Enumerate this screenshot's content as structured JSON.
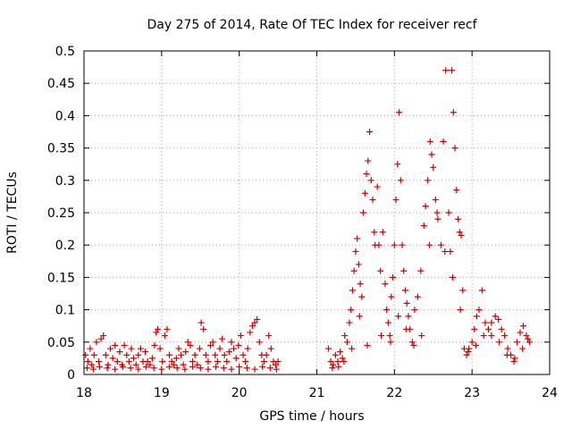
{
  "chart_data": {
    "type": "scatter",
    "title": "Day 275 of 2014, Rate Of TEC Index for receiver recf",
    "xlabel": "GPS time / hours",
    "ylabel": "ROTI / TECUs",
    "xlim": [
      18,
      24
    ],
    "ylim": [
      0,
      0.5
    ],
    "xticks": [
      "18",
      "19",
      "20",
      "21",
      "22",
      "23",
      "24"
    ],
    "yticks": [
      "0",
      "0.05",
      "0.1",
      "0.15",
      "0.2",
      "0.25",
      "0.3",
      "0.35",
      "0.4",
      "0.45",
      "0.5"
    ],
    "grid": true,
    "marker": "+",
    "color": "#cc0000",
    "series": [
      {
        "name": "ROTI",
        "points": [
          [
            18.02,
            0.03
          ],
          [
            18.05,
            0.02
          ],
          [
            18.08,
            0.04
          ],
          [
            18.1,
            0.015
          ],
          [
            18.13,
            0.03
          ],
          [
            18.16,
            0.05
          ],
          [
            18.19,
            0.02
          ],
          [
            18.22,
            0.055
          ],
          [
            18.25,
            0.06
          ],
          [
            18.28,
            0.03
          ],
          [
            18.31,
            0.015
          ],
          [
            18.34,
            0.04
          ],
          [
            18.37,
            0.025
          ],
          [
            18.4,
            0.045
          ],
          [
            18.43,
            0.02
          ],
          [
            18.46,
            0.035
          ],
          [
            18.49,
            0.015
          ],
          [
            18.52,
            0.045
          ],
          [
            18.55,
            0.03
          ],
          [
            18.58,
            0.02
          ],
          [
            18.61,
            0.04
          ],
          [
            18.64,
            0.025
          ],
          [
            18.67,
            0.015
          ],
          [
            18.7,
            0.03
          ],
          [
            18.73,
            0.04
          ],
          [
            18.76,
            0.02
          ],
          [
            18.79,
            0.035
          ],
          [
            18.82,
            0.02
          ],
          [
            18.85,
            0.015
          ],
          [
            18.88,
            0.025
          ],
          [
            18.91,
            0.045
          ],
          [
            18.93,
            0.065
          ],
          [
            18.95,
            0.07
          ],
          [
            18.98,
            0.04
          ],
          [
            19.01,
            0.02
          ],
          [
            19.04,
            0.06
          ],
          [
            19.07,
            0.07
          ],
          [
            19.1,
            0.03
          ],
          [
            19.13,
            0.02
          ],
          [
            19.16,
            0.015
          ],
          [
            19.19,
            0.025
          ],
          [
            19.22,
            0.04
          ],
          [
            19.25,
            0.03
          ],
          [
            19.28,
            0.015
          ],
          [
            19.31,
            0.035
          ],
          [
            19.34,
            0.05
          ],
          [
            19.37,
            0.045
          ],
          [
            19.4,
            0.02
          ],
          [
            19.43,
            0.03
          ],
          [
            19.46,
            0.015
          ],
          [
            19.49,
            0.04
          ],
          [
            19.51,
            0.08
          ],
          [
            19.54,
            0.07
          ],
          [
            19.57,
            0.03
          ],
          [
            19.6,
            0.02
          ],
          [
            19.63,
            0.045
          ],
          [
            19.66,
            0.05
          ],
          [
            19.69,
            0.03
          ],
          [
            19.72,
            0.02
          ],
          [
            19.75,
            0.04
          ],
          [
            19.78,
            0.055
          ],
          [
            19.81,
            0.03
          ],
          [
            19.84,
            0.02
          ],
          [
            19.87,
            0.035
          ],
          [
            19.9,
            0.05
          ],
          [
            19.93,
            0.04
          ],
          [
            19.96,
            0.025
          ],
          [
            19.99,
            0.045
          ],
          [
            20.02,
            0.06
          ],
          [
            20.05,
            0.03
          ],
          [
            20.08,
            0.02
          ],
          [
            20.11,
            0.04
          ],
          [
            20.14,
            0.065
          ],
          [
            20.17,
            0.075
          ],
          [
            20.2,
            0.08
          ],
          [
            20.23,
            0.085
          ],
          [
            20.26,
            0.05
          ],
          [
            20.29,
            0.03
          ],
          [
            20.32,
            0.02
          ],
          [
            20.35,
            0.03
          ],
          [
            20.38,
            0.06
          ],
          [
            20.41,
            0.04
          ],
          [
            20.44,
            0.02
          ],
          [
            20.47,
            0.015
          ],
          [
            20.5,
            0.02
          ],
          [
            18.04,
            0.01
          ],
          [
            18.12,
            0.008
          ],
          [
            18.2,
            0.012
          ],
          [
            18.3,
            0.01
          ],
          [
            18.4,
            0.008
          ],
          [
            18.5,
            0.012
          ],
          [
            18.6,
            0.01
          ],
          [
            18.7,
            0.008
          ],
          [
            18.8,
            0.012
          ],
          [
            18.9,
            0.01
          ],
          [
            19.0,
            0.008
          ],
          [
            19.1,
            0.012
          ],
          [
            19.2,
            0.01
          ],
          [
            19.3,
            0.008
          ],
          [
            19.4,
            0.012
          ],
          [
            19.5,
            0.01
          ],
          [
            19.6,
            0.008
          ],
          [
            19.7,
            0.012
          ],
          [
            19.8,
            0.01
          ],
          [
            19.9,
            0.008
          ],
          [
            20.0,
            0.012
          ],
          [
            20.1,
            0.01
          ],
          [
            20.2,
            0.008
          ],
          [
            20.3,
            0.012
          ],
          [
            20.4,
            0.01
          ],
          [
            20.48,
            0.008
          ],
          [
            21.15,
            0.04
          ],
          [
            21.18,
            0.02
          ],
          [
            21.21,
            0.015
          ],
          [
            21.24,
            0.03
          ],
          [
            21.27,
            0.02
          ],
          [
            21.3,
            0.035
          ],
          [
            21.33,
            0.025
          ],
          [
            21.36,
            0.06
          ],
          [
            21.39,
            0.05
          ],
          [
            21.42,
            0.08
          ],
          [
            21.44,
            0.1
          ],
          [
            21.46,
            0.13
          ],
          [
            21.48,
            0.16
          ],
          [
            21.5,
            0.19
          ],
          [
            21.52,
            0.21
          ],
          [
            21.54,
            0.17
          ],
          [
            21.56,
            0.14
          ],
          [
            21.58,
            0.12
          ],
          [
            21.6,
            0.25
          ],
          [
            21.62,
            0.28
          ],
          [
            21.64,
            0.31
          ],
          [
            21.66,
            0.33
          ],
          [
            21.68,
            0.375
          ],
          [
            21.7,
            0.3
          ],
          [
            21.72,
            0.27
          ],
          [
            21.74,
            0.22
          ],
          [
            21.78,
            0.29
          ],
          [
            21.8,
            0.2
          ],
          [
            21.82,
            0.16
          ],
          [
            21.85,
            0.22
          ],
          [
            21.88,
            0.14
          ],
          [
            21.9,
            0.1
          ],
          [
            21.92,
            0.08
          ],
          [
            21.94,
            0.06
          ],
          [
            21.96,
            0.12
          ],
          [
            21.98,
            0.15
          ],
          [
            22.0,
            0.2
          ],
          [
            22.02,
            0.27
          ],
          [
            22.04,
            0.325
          ],
          [
            22.06,
            0.405
          ],
          [
            22.08,
            0.3
          ],
          [
            22.1,
            0.2
          ],
          [
            22.12,
            0.16
          ],
          [
            22.14,
            0.13
          ],
          [
            22.16,
            0.11
          ],
          [
            22.18,
            0.09
          ],
          [
            22.2,
            0.07
          ],
          [
            22.23,
            0.05
          ],
          [
            22.26,
            0.1
          ],
          [
            22.3,
            0.12
          ],
          [
            22.34,
            0.16
          ],
          [
            22.38,
            0.23
          ],
          [
            22.4,
            0.26
          ],
          [
            22.43,
            0.3
          ],
          [
            22.46,
            0.36
          ],
          [
            22.48,
            0.34
          ],
          [
            22.5,
            0.32
          ],
          [
            22.53,
            0.27
          ],
          [
            22.56,
            0.24
          ],
          [
            22.6,
            0.2
          ],
          [
            22.63,
            0.36
          ],
          [
            22.66,
            0.47
          ],
          [
            22.7,
            0.25
          ],
          [
            22.72,
            0.19
          ],
          [
            22.74,
            0.47
          ],
          [
            22.76,
            0.405
          ],
          [
            22.78,
            0.35
          ],
          [
            22.8,
            0.285
          ],
          [
            22.82,
            0.24
          ],
          [
            22.84,
            0.22
          ],
          [
            22.86,
            0.215
          ],
          [
            22.88,
            0.13
          ],
          [
            22.9,
            0.04
          ],
          [
            22.93,
            0.03
          ],
          [
            22.96,
            0.04
          ],
          [
            23.0,
            0.05
          ],
          [
            23.03,
            0.07
          ],
          [
            23.06,
            0.09
          ],
          [
            23.09,
            0.1
          ],
          [
            23.13,
            0.13
          ],
          [
            23.17,
            0.08
          ],
          [
            23.21,
            0.07
          ],
          [
            23.25,
            0.06
          ],
          [
            23.3,
            0.09
          ],
          [
            23.34,
            0.085
          ],
          [
            23.38,
            0.07
          ],
          [
            23.42,
            0.06
          ],
          [
            23.46,
            0.04
          ],
          [
            23.5,
            0.03
          ],
          [
            23.54,
            0.02
          ],
          [
            23.58,
            0.05
          ],
          [
            23.62,
            0.065
          ],
          [
            23.66,
            0.075
          ],
          [
            23.7,
            0.06
          ],
          [
            23.74,
            0.05
          ],
          [
            21.2,
            0.01
          ],
          [
            21.28,
            0.012
          ],
          [
            21.35,
            0.02
          ],
          [
            21.45,
            0.04
          ],
          [
            21.55,
            0.09
          ],
          [
            21.65,
            0.045
          ],
          [
            21.75,
            0.2
          ],
          [
            21.83,
            0.06
          ],
          [
            21.95,
            0.05
          ],
          [
            22.05,
            0.09
          ],
          [
            22.15,
            0.07
          ],
          [
            22.25,
            0.045
          ],
          [
            22.35,
            0.06
          ],
          [
            22.45,
            0.2
          ],
          [
            22.55,
            0.25
          ],
          [
            22.65,
            0.19
          ],
          [
            22.75,
            0.15
          ],
          [
            22.85,
            0.1
          ],
          [
            22.95,
            0.035
          ],
          [
            23.05,
            0.045
          ],
          [
            23.15,
            0.06
          ],
          [
            23.25,
            0.08
          ],
          [
            23.35,
            0.05
          ],
          [
            23.45,
            0.03
          ],
          [
            23.55,
            0.025
          ],
          [
            23.65,
            0.04
          ],
          [
            23.72,
            0.055
          ]
        ]
      }
    ]
  }
}
